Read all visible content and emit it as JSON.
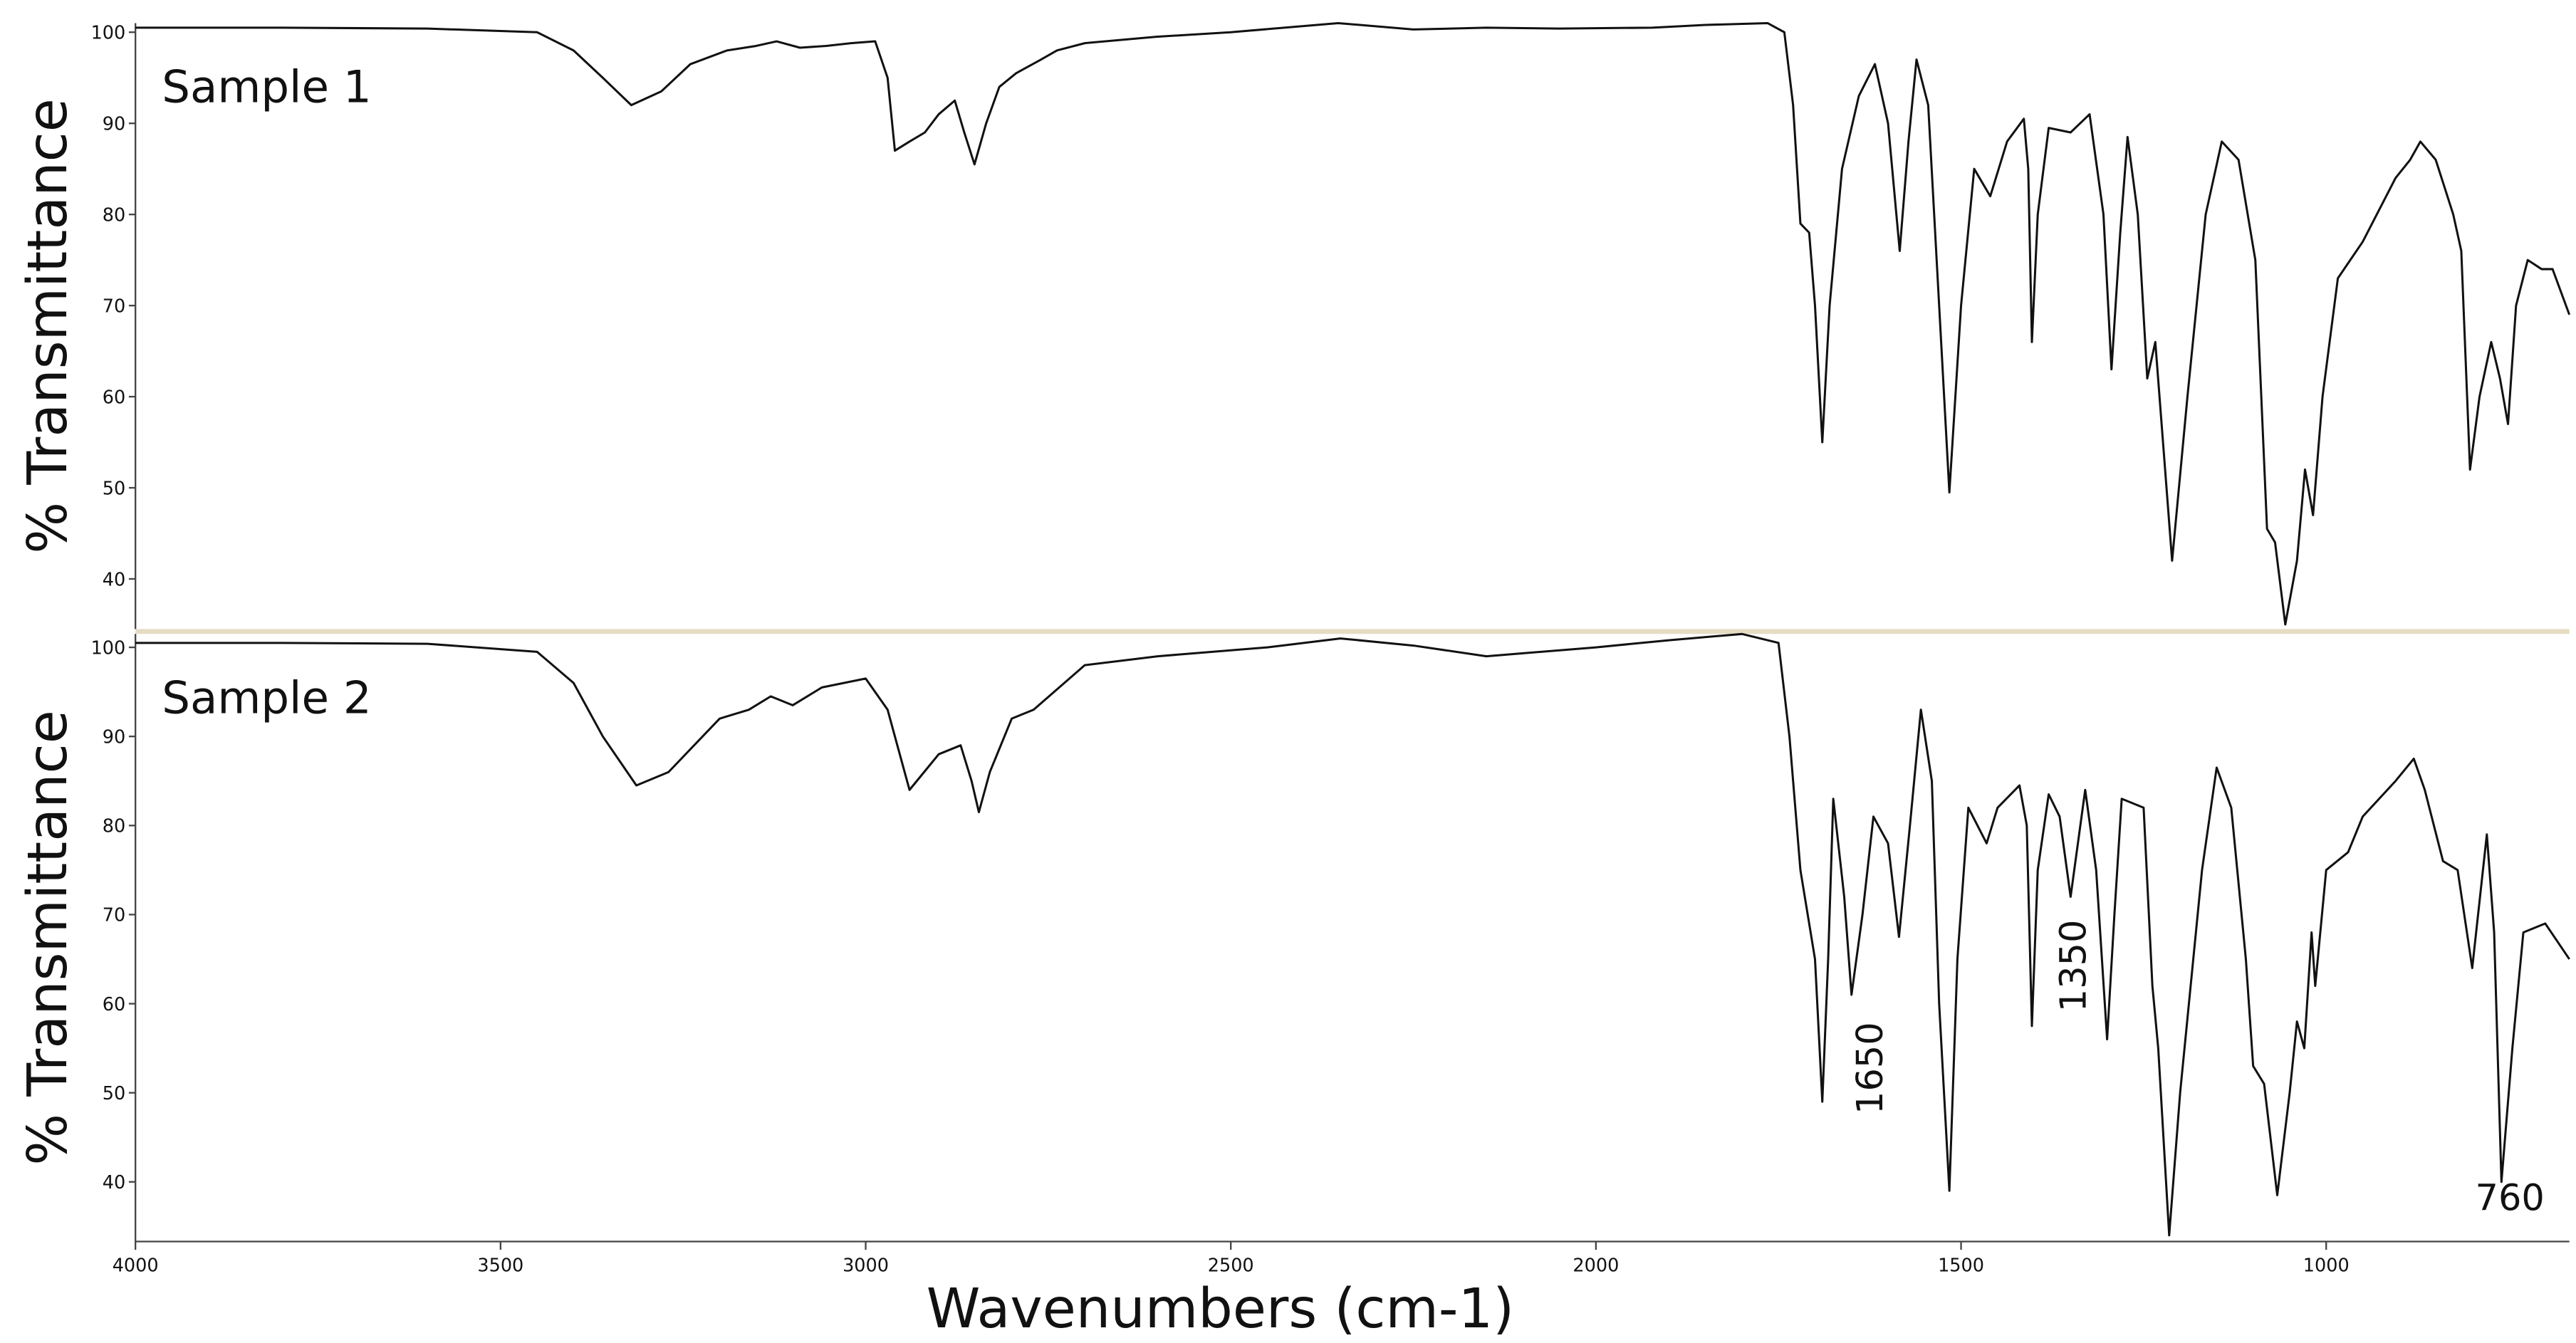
{
  "chart_data": [
    {
      "type": "line",
      "title": "Sample 1",
      "y_label": "% Transmittance",
      "color": "#111111",
      "xlim": [
        4000,
        667
      ],
      "ylim": [
        34.5,
        101
      ],
      "yticks": [
        40,
        50,
        60,
        70,
        80,
        90,
        100
      ],
      "x": [
        4000,
        3800,
        3600,
        3450,
        3400,
        3360,
        3321,
        3280,
        3240,
        3190,
        3150,
        3122,
        3090,
        3054,
        3020,
        2987,
        2970,
        2960,
        2940,
        2919,
        2900,
        2878,
        2865,
        2851,
        2835,
        2817,
        2794,
        2760,
        2738,
        2700,
        2602,
        2500,
        2353,
        2250,
        2150,
        2050,
        1923,
        1850,
        1765,
        1742,
        1730,
        1720,
        1708,
        1700,
        1690,
        1680,
        1663,
        1640,
        1618,
        1600,
        1584,
        1572,
        1561,
        1545,
        1530,
        1516,
        1500,
        1482,
        1460,
        1437,
        1414,
        1408,
        1403,
        1395,
        1380,
        1350,
        1324,
        1305,
        1294,
        1282,
        1272,
        1258,
        1245,
        1234,
        1211,
        1190,
        1165,
        1143,
        1120,
        1097,
        1081,
        1070,
        1056,
        1040,
        1029,
        1018,
        1005,
        984,
        950,
        905,
        885,
        871,
        850,
        826,
        815,
        803,
        790,
        774,
        762,
        751,
        740,
        724,
        705,
        690,
        667
      ],
      "values": [
        100.5,
        100.5,
        100.4,
        100,
        98,
        95,
        92,
        93.5,
        96.5,
        98,
        98.5,
        99,
        98.3,
        98.5,
        98.8,
        99,
        95,
        87,
        88,
        89,
        91,
        92.5,
        89,
        85.5,
        90,
        94,
        95.5,
        97,
        98,
        98.8,
        99.5,
        100,
        101,
        100.3,
        100.5,
        100.4,
        100.5,
        100.8,
        101,
        100,
        92,
        79,
        78,
        70,
        55,
        70,
        85,
        93,
        96.5,
        90,
        76,
        88,
        97,
        92,
        70,
        49.5,
        70,
        85,
        82,
        88,
        90.5,
        85,
        66,
        80,
        89.5,
        89,
        91,
        80,
        63,
        78,
        88.5,
        80,
        62,
        66,
        42,
        60,
        80,
        88,
        86,
        75,
        45.5,
        44,
        35,
        42,
        52,
        47,
        60,
        73,
        77,
        84,
        86,
        88,
        86,
        80,
        76,
        52,
        60,
        66,
        62,
        57,
        70,
        75,
        74,
        74,
        69
      ]
    },
    {
      "type": "line",
      "title": "Sample 2",
      "y_label": "% Transmittance",
      "x_label": "Wavenumbers (cm-1)",
      "color": "#111111",
      "xlim": [
        4000,
        667
      ],
      "ylim": [
        33.3,
        101.5
      ],
      "yticks": [
        40,
        50,
        60,
        70,
        80,
        90,
        100
      ],
      "xticks": [
        4000,
        3500,
        3000,
        2500,
        2000,
        1500,
        1000
      ],
      "annotations": [
        "1650",
        "1350",
        "760"
      ],
      "x": [
        4000,
        3800,
        3600,
        3450,
        3400,
        3360,
        3314,
        3270,
        3200,
        3160,
        3130,
        3100,
        3060,
        3000,
        2970,
        2940,
        2920,
        2900,
        2870,
        2855,
        2845,
        2830,
        2800,
        2770,
        2700,
        2600,
        2450,
        2350,
        2250,
        2150,
        2000,
        1900,
        1800,
        1750,
        1735,
        1720,
        1700,
        1690,
        1682,
        1675,
        1660,
        1650,
        1635,
        1620,
        1600,
        1585,
        1570,
        1555,
        1540,
        1530,
        1516,
        1505,
        1490,
        1465,
        1450,
        1420,
        1410,
        1403,
        1395,
        1380,
        1365,
        1350,
        1330,
        1315,
        1300,
        1290,
        1280,
        1250,
        1238,
        1230,
        1215,
        1200,
        1170,
        1150,
        1130,
        1110,
        1100,
        1085,
        1067,
        1050,
        1040,
        1030,
        1020,
        1015,
        1000,
        970,
        950,
        905,
        880,
        865,
        840,
        820,
        800,
        780,
        770,
        760,
        745,
        730,
        700,
        667
      ],
      "values": [
        100.5,
        100.5,
        100.4,
        99.5,
        96,
        90,
        84.5,
        86,
        92,
        93,
        94.5,
        93.5,
        95.5,
        96.5,
        93,
        84,
        86,
        88,
        89,
        85,
        81.5,
        86,
        92,
        93,
        98,
        99,
        100,
        101,
        100.2,
        99,
        100,
        100.8,
        101.5,
        100.5,
        90,
        75,
        65,
        49,
        65,
        83,
        72,
        61,
        70,
        81,
        78,
        67.5,
        80,
        93,
        85,
        60,
        39,
        65,
        82,
        78,
        82,
        84.5,
        80,
        57.5,
        75,
        83.5,
        81,
        72,
        84,
        75,
        56,
        70,
        83,
        82,
        62,
        55,
        34,
        50,
        75,
        86.5,
        82,
        65,
        53,
        51,
        38.5,
        50,
        58,
        55,
        68,
        62,
        75,
        77,
        81,
        85,
        87.5,
        84,
        76,
        75,
        64,
        79,
        68,
        40,
        55,
        68,
        69,
        65
      ]
    }
  ]
}
